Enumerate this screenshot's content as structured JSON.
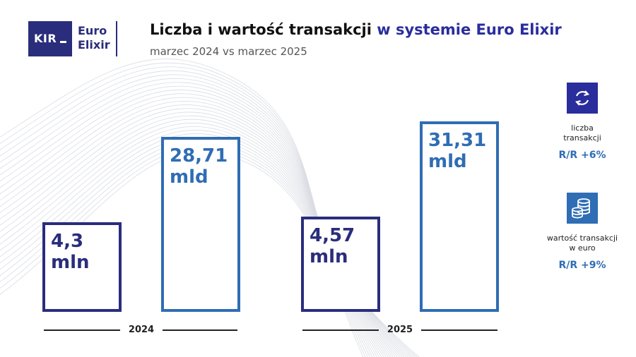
{
  "logo": {
    "kir": "KIR",
    "euro": "Euro",
    "elixir": "Elixir"
  },
  "header": {
    "title_main": "Liczba i wartość transakcji ",
    "title_accent": "w systemie Euro Elixir",
    "subtitle": "marzec 2024 vs marzec 2025"
  },
  "chart_data": {
    "type": "bar",
    "categories": [
      "2024",
      "2025"
    ],
    "series": [
      {
        "values": [
          4.3,
          4.57
        ],
        "unit": "mln",
        "labels": [
          "4,3",
          "4,57"
        ],
        "color": "#2a2d7c"
      },
      {
        "values": [
          28.71,
          31.31
        ],
        "unit": "mld",
        "labels": [
          "28,71",
          "31,31"
        ],
        "color": "#2f6db4"
      }
    ]
  },
  "legend": {
    "count": {
      "icon": "refresh-arrows-icon",
      "line1": "liczba",
      "line2": "transakcji",
      "growth": "R/R +6%",
      "color": "#2a2d9c"
    },
    "value": {
      "icon": "coins-stack-icon",
      "line1": "wartość transakcji",
      "line2": "w euro",
      "growth": "R/R +9%",
      "color": "#2f6db4"
    }
  },
  "colors": {
    "navy": "#2a2d7c",
    "blue": "#2f6db4",
    "wave": "#d9dce3"
  }
}
